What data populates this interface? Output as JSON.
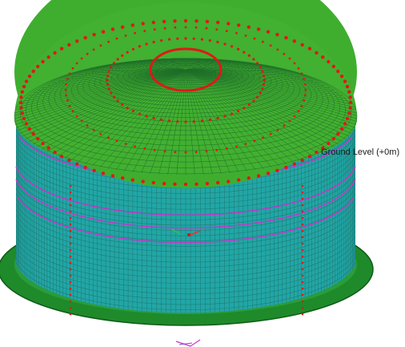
{
  "viewport": {
    "annotation_label": "Ground Level (+0m)"
  },
  "colors": {
    "background": "#ffffff",
    "roof_fill": "#3fae2f",
    "roof_mesh": "#1f6e2a",
    "wall_fill": "#22a6a6",
    "wall_mesh": "#1d7f78",
    "base_ring": "#1e8a2a",
    "anchors": "#e01818",
    "stiffener_rings": "#cc33cc",
    "ground_marker": "#ff2a2a"
  },
  "icons": {
    "triad": "axis-triad-icon",
    "legend_marker": "plot-marker-icon"
  }
}
